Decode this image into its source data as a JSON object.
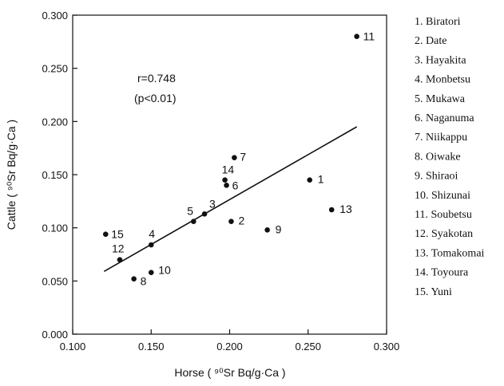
{
  "chart_data": {
    "type": "scatter",
    "xlabel": "Horse ( ⁹⁰Sr Bq/g·Ca )",
    "ylabel": "Cattle ( ⁹⁰Sr Bq/g·Ca )",
    "xlim": [
      0.1,
      0.3
    ],
    "ylim": [
      0.0,
      0.3
    ],
    "xticks": [
      "0.100",
      "0.150",
      "0.200",
      "0.250",
      "0.300"
    ],
    "yticks": [
      "0.000",
      "0.050",
      "0.100",
      "0.150",
      "0.200",
      "0.250",
      "0.300"
    ],
    "points": [
      {
        "id": "1",
        "x": 0.251,
        "y": 0.145
      },
      {
        "id": "2",
        "x": 0.201,
        "y": 0.106
      },
      {
        "id": "3",
        "x": 0.184,
        "y": 0.113
      },
      {
        "id": "4",
        "x": 0.15,
        "y": 0.084
      },
      {
        "id": "5",
        "x": 0.177,
        "y": 0.106
      },
      {
        "id": "6",
        "x": 0.198,
        "y": 0.14
      },
      {
        "id": "7",
        "x": 0.203,
        "y": 0.166
      },
      {
        "id": "8",
        "x": 0.139,
        "y": 0.052
      },
      {
        "id": "9",
        "x": 0.224,
        "y": 0.098
      },
      {
        "id": "10",
        "x": 0.15,
        "y": 0.058
      },
      {
        "id": "11",
        "x": 0.281,
        "y": 0.28
      },
      {
        "id": "12",
        "x": 0.13,
        "y": 0.07
      },
      {
        "id": "13",
        "x": 0.265,
        "y": 0.117
      },
      {
        "id": "14",
        "x": 0.197,
        "y": 0.145
      },
      {
        "id": "15",
        "x": 0.121,
        "y": 0.094
      }
    ],
    "regression": {
      "x": [
        0.12,
        0.281
      ],
      "y": [
        0.059,
        0.195
      ]
    },
    "annotation": {
      "r": "r=0.748",
      "p": "(p<0.01)"
    },
    "legend": [
      "1. Biratori",
      "2. Date",
      "3. Hayakita",
      "4. Monbetsu",
      "5. Mukawa",
      "6. Naganuma",
      "7. Niikappu",
      "8. Oiwake",
      "9. Shiraoi",
      "10. Shizunai",
      "11. Soubetsu",
      "12. Syakotan",
      "13. Tomakomai",
      "14. Toyoura",
      "15. Yuni"
    ],
    "grid": false,
    "legend_position": "right"
  }
}
